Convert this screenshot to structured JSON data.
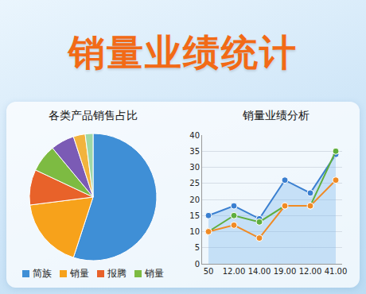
{
  "title": "销量业绩统计",
  "chart_data": [
    {
      "type": "pie",
      "title": "各类产品销售占比",
      "categories": [
        "简族",
        "销量",
        "报腾",
        "销量",
        null,
        null,
        null
      ],
      "values": [
        55,
        18,
        9,
        7,
        6,
        3,
        2
      ],
      "colors": [
        "#3f8fd6",
        "#f7a21b",
        "#e8622a",
        "#7dbb42",
        "#7b5bb5",
        "#f2b33d",
        "#9ed8a6"
      ],
      "legend": "bottom"
    },
    {
      "type": "line",
      "title": "销量业绩分析",
      "categories": [
        "50",
        "12.00",
        "14.00",
        "19.00",
        "12.00",
        "41.00"
      ],
      "series": [
        {
          "color": "#3a7fd0",
          "values": [
            15,
            18,
            14,
            26,
            22,
            34
          ]
        },
        {
          "color": "#5fae3e",
          "values": [
            10,
            15,
            13,
            18,
            18,
            35
          ]
        },
        {
          "color": "#f08a24",
          "values": [
            10,
            12,
            8,
            18,
            18,
            26
          ]
        }
      ],
      "ylim": [
        0,
        40
      ],
      "yticks": [
        0,
        5,
        10,
        15,
        20,
        25,
        30,
        35,
        40
      ],
      "grid": true
    }
  ]
}
